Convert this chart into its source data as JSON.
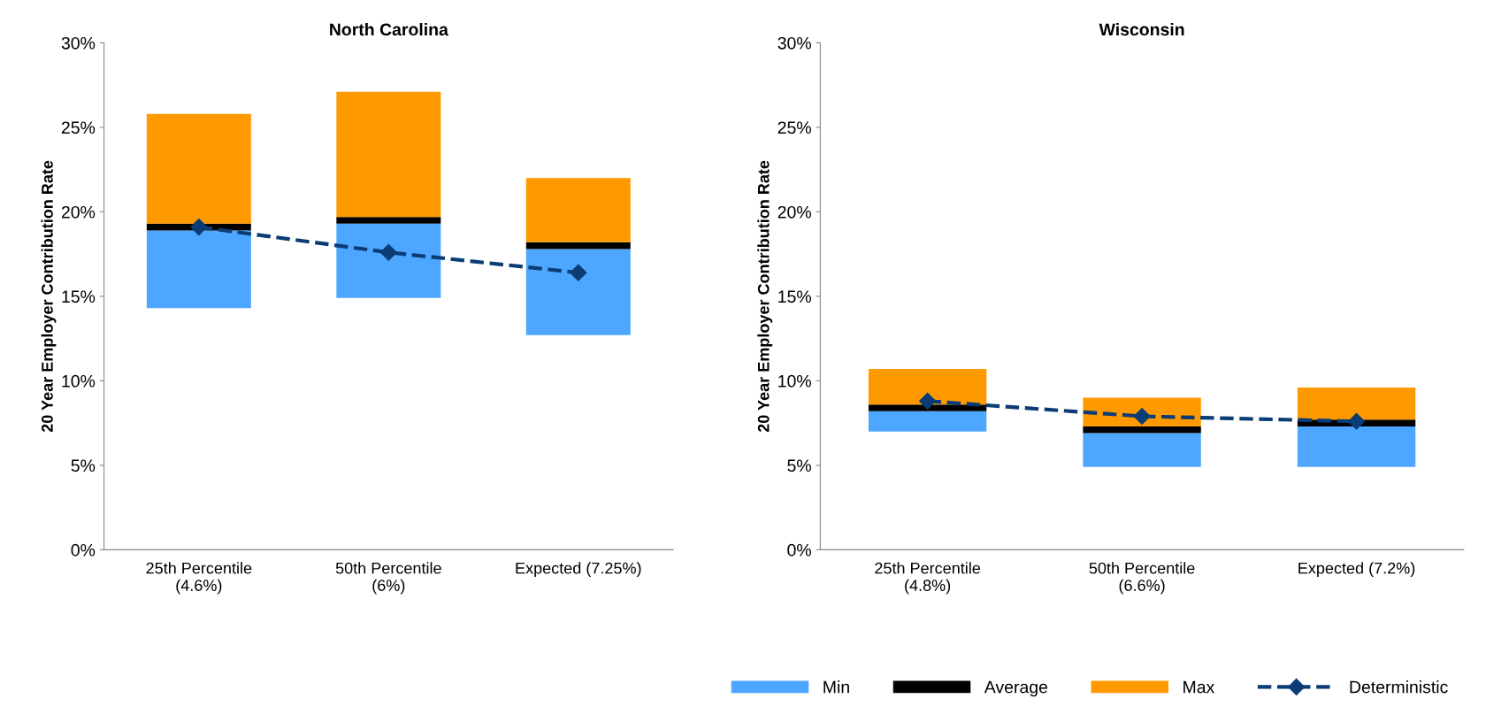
{
  "chart_data": [
    {
      "type": "bar",
      "title": "North Carolina",
      "ylabel": "20 Year Employer Contribution Rate",
      "categories": [
        "25th Percentile\n(4.6%)",
        "50th Percentile\n(6%)",
        "Expected (7.25%)"
      ],
      "series": [
        {
          "color": "#4da6ff",
          "base": [
            14.3,
            14.9,
            12.7
          ],
          "values": [
            4.6,
            4.4,
            5.1
          ]
        },
        {
          "color": "#000000",
          "base": [
            18.9,
            19.3,
            17.8
          ],
          "values": [
            0.4,
            0.4,
            0.4
          ]
        },
        {
          "color": "#ff9900",
          "base": [
            19.3,
            19.7,
            18.2
          ],
          "values": [
            6.5,
            7.4,
            3.8
          ]
        },
        {
          "type": "line",
          "color": "#0b3c75",
          "marker": "diamond",
          "line_style": "dashed",
          "values": [
            19.1,
            17.6,
            16.4
          ]
        }
      ],
      "ylim": [
        0,
        30
      ],
      "yticks": [
        {
          "value": 0,
          "label": "0%"
        },
        {
          "value": 5,
          "label": "5%"
        },
        {
          "value": 10,
          "label": "10%"
        },
        {
          "value": 15,
          "label": "15%"
        },
        {
          "value": 20,
          "label": "20%"
        },
        {
          "value": 25,
          "label": "25%"
        },
        {
          "value": 30,
          "label": "30%"
        }
      ],
      "grid": false
    },
    {
      "type": "bar",
      "title": "Wisconsin",
      "ylabel": "20 Year Employer Contribution Rate",
      "categories": [
        "25th Percentile\n(4.8%)",
        "50th Percentile\n(6.6%)",
        "Expected (7.2%)"
      ],
      "series": [
        {
          "name": "Min",
          "color": "#4da6ff",
          "base": [
            7.0,
            4.9,
            4.9
          ],
          "values": [
            1.2,
            2.0,
            2.4
          ]
        },
        {
          "name": "Average",
          "color": "#000000",
          "base": [
            8.2,
            6.9,
            7.3
          ],
          "values": [
            0.4,
            0.4,
            0.4
          ]
        },
        {
          "name": "Max",
          "color": "#ff9900",
          "base": [
            8.6,
            7.3,
            7.7
          ],
          "values": [
            2.1,
            1.7,
            1.9
          ]
        },
        {
          "name": "Deterministic",
          "type": "line",
          "color": "#0b3c75",
          "marker": "diamond",
          "line_style": "dashed",
          "values": [
            8.8,
            7.9,
            7.6
          ]
        }
      ],
      "ylim": [
        0,
        30
      ],
      "yticks": [
        {
          "value": 0,
          "label": "0%"
        },
        {
          "value": 5,
          "label": "5%"
        },
        {
          "value": 10,
          "label": "10%"
        },
        {
          "value": 15,
          "label": "15%"
        },
        {
          "value": 20,
          "label": "20%"
        },
        {
          "value": 25,
          "label": "25%"
        },
        {
          "value": 30,
          "label": "30%"
        }
      ],
      "grid": false,
      "legend": "bottom"
    }
  ]
}
